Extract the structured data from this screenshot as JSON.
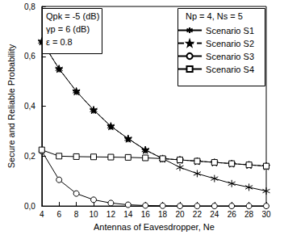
{
  "chart_data": {
    "type": "line",
    "x_label": "Antennas of Eavesdropper, Ne",
    "y_label": "Secure and Reliable Probability",
    "annotations": [
      "Qpk = -5 (dB)",
      "γp = 6 (dB)",
      "ε = 0.8"
    ],
    "legend_title": "Np = 4, Ns = 5",
    "legend": "upper right",
    "grid": false,
    "xlim": [
      4,
      30
    ],
    "xticks": [
      4,
      6,
      8,
      10,
      12,
      14,
      16,
      18,
      20,
      22,
      24,
      26,
      28,
      30
    ],
    "ylim": [
      0,
      0.8
    ],
    "yticks": [
      {
        "value": 0,
        "label": "0,0"
      },
      {
        "value": 0.2,
        "label": "0,2"
      },
      {
        "value": 0.4,
        "label": "0,4"
      },
      {
        "value": 0.6,
        "label": "0,6"
      },
      {
        "value": 0.8,
        "label": "0,8"
      }
    ],
    "x": [
      4,
      6,
      8,
      10,
      12,
      14,
      16,
      18,
      20,
      22,
      24,
      26,
      28,
      30
    ],
    "series": [
      {
        "name": "Scenario S1",
        "color": "#000000",
        "marker": "asterisk",
        "line_style": "solid",
        "values": [
          0.66,
          0.55,
          0.46,
          0.385,
          0.32,
          0.27,
          0.225,
          0.19,
          0.155,
          0.13,
          0.11,
          0.09,
          0.075,
          0.06
        ]
      },
      {
        "name": "Scenario S2",
        "color": "#000000",
        "marker": "star",
        "line_style": "dashed",
        "values": [
          0.66,
          0.55,
          0.46,
          0.385,
          0.32,
          0.27,
          0.225,
          0.19,
          0.185,
          0.18,
          0.175,
          0.17,
          0.165,
          0.16
        ]
      },
      {
        "name": "Scenario S3",
        "color": "#000000",
        "marker": "circle",
        "line_style": "solid",
        "values": [
          0.22,
          0.105,
          0.05,
          0.025,
          0.012,
          0.005,
          0.002,
          0.001,
          0,
          0,
          0,
          0,
          0,
          0
        ]
      },
      {
        "name": "Scenario S4",
        "color": "#000000",
        "marker": "square",
        "line_style": "solid",
        "values": [
          0.225,
          0.2,
          0.198,
          0.197,
          0.196,
          0.195,
          0.193,
          0.19,
          0.185,
          0.18,
          0.175,
          0.17,
          0.165,
          0.16
        ]
      }
    ]
  }
}
